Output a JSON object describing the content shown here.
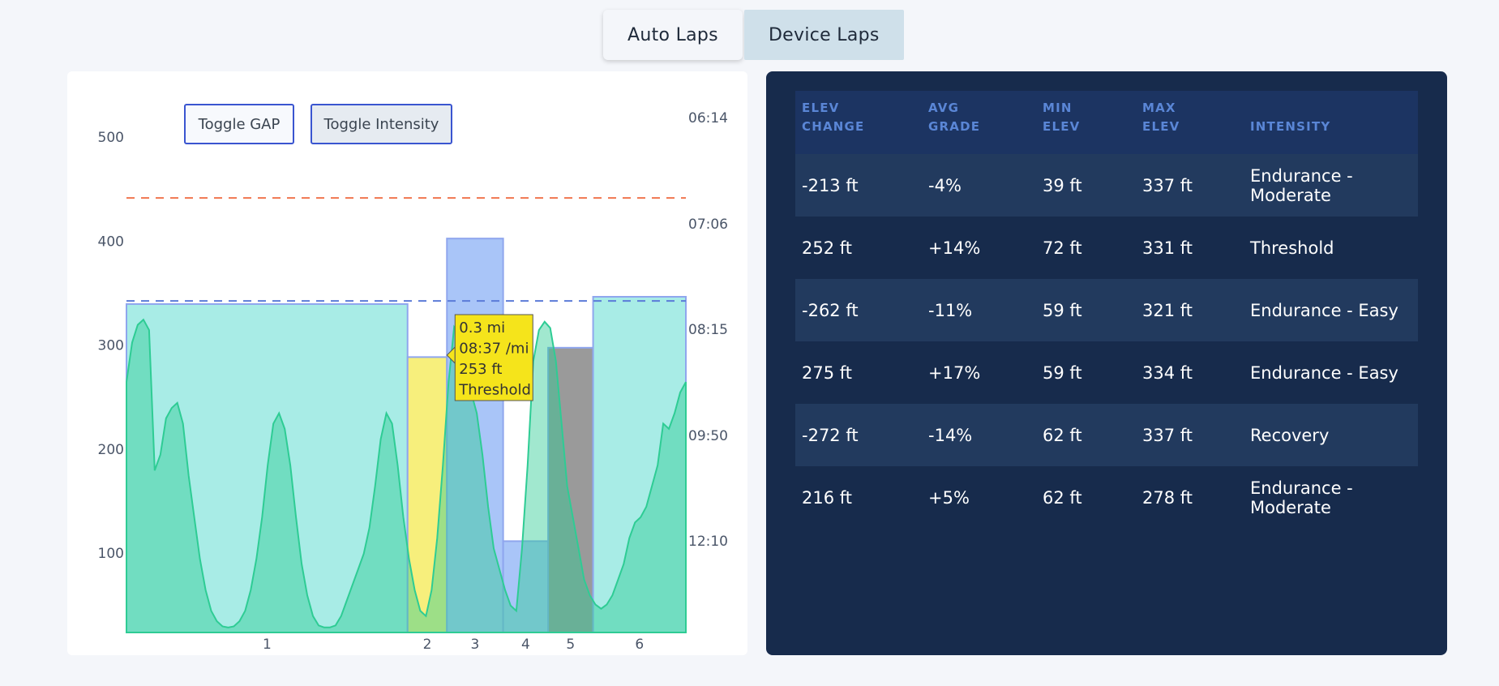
{
  "tabs": [
    {
      "label": "Auto Laps",
      "active": false
    },
    {
      "label": "Device Laps",
      "active": true
    }
  ],
  "buttons": {
    "toggle_gap": "Toggle GAP",
    "toggle_intensity": "Toggle Intensity"
  },
  "chart_data": {
    "type": "bar",
    "left_axis": {
      "ticks": [
        100,
        200,
        300,
        400,
        500
      ],
      "range": [
        40,
        510
      ]
    },
    "right_axis": {
      "ticks": [
        "06:14",
        "07:06",
        "08:15",
        "09:50",
        "12:10"
      ]
    },
    "categories": [
      "1",
      "2",
      "3",
      "4",
      "5",
      "6"
    ],
    "laps": [
      {
        "lap": "1",
        "distance_mi": 1.0,
        "value": 355,
        "color": "#a8ece6"
      },
      {
        "lap": "2",
        "distance_mi": 0.14,
        "value": 304,
        "color": "#f7ef7c"
      },
      {
        "lap": "3",
        "distance_mi": 0.2,
        "value": 418,
        "color": "#a9c5f8"
      },
      {
        "lap": "4",
        "distance_mi": 0.16,
        "value": 127,
        "color": "#a9c5f8"
      },
      {
        "lap": "5",
        "distance_mi": 0.16,
        "value": 313,
        "color": "#9a9a9a"
      },
      {
        "lap": "6",
        "distance_mi": 0.33,
        "value": 362,
        "color": "#a8ece6"
      }
    ],
    "reference_lines": [
      {
        "value": 457,
        "color": "#f0764f"
      },
      {
        "value": 358,
        "color": "#5b7bd8"
      }
    ],
    "elevation_series": {
      "color": "#2ecc94",
      "values": [
        280,
        318,
        335,
        340,
        330,
        195,
        210,
        245,
        255,
        260,
        240,
        190,
        150,
        110,
        80,
        60,
        50,
        45,
        44,
        45,
        50,
        60,
        80,
        110,
        150,
        200,
        240,
        250,
        235,
        200,
        150,
        105,
        75,
        55,
        46,
        44,
        44,
        46,
        55,
        70,
        85,
        100,
        115,
        140,
        180,
        225,
        250,
        240,
        200,
        150,
        110,
        80,
        60,
        55,
        80,
        130,
        200,
        280,
        333,
        325,
        300,
        270,
        250,
        210,
        160,
        120,
        100,
        80,
        65,
        60,
        120,
        200,
        300,
        330,
        338,
        332,
        300,
        240,
        180,
        150,
        120,
        90,
        75,
        66,
        62,
        66,
        75,
        90,
        105,
        130,
        145,
        150,
        160,
        180,
        200,
        240,
        235,
        250,
        270,
        280
      ]
    },
    "tooltip": {
      "distance": "0.3 mi",
      "pace": "08:37 /mi",
      "elevation": "253 ft",
      "intensity": "Threshold"
    }
  },
  "table": {
    "headers": [
      [
        "ELEV",
        "CHANGE"
      ],
      [
        "AVG",
        "GRADE"
      ],
      [
        "MIN",
        "ELEV"
      ],
      [
        "MAX",
        "ELEV"
      ],
      [
        "",
        "INTENSITY"
      ]
    ],
    "rows": [
      [
        "-213 ft",
        "-4%",
        "39 ft",
        "337 ft",
        "Endurance - Moderate"
      ],
      [
        "252 ft",
        "+14%",
        "72 ft",
        "331 ft",
        "Threshold"
      ],
      [
        "-262 ft",
        "-11%",
        "59 ft",
        "321 ft",
        "Endurance - Easy"
      ],
      [
        "275 ft",
        "+17%",
        "59 ft",
        "334 ft",
        "Endurance - Easy"
      ],
      [
        "-272 ft",
        "-14%",
        "62 ft",
        "337 ft",
        "Recovery"
      ],
      [
        "216 ft",
        "+5%",
        "62 ft",
        "278 ft",
        "Endurance - Moderate"
      ]
    ]
  }
}
